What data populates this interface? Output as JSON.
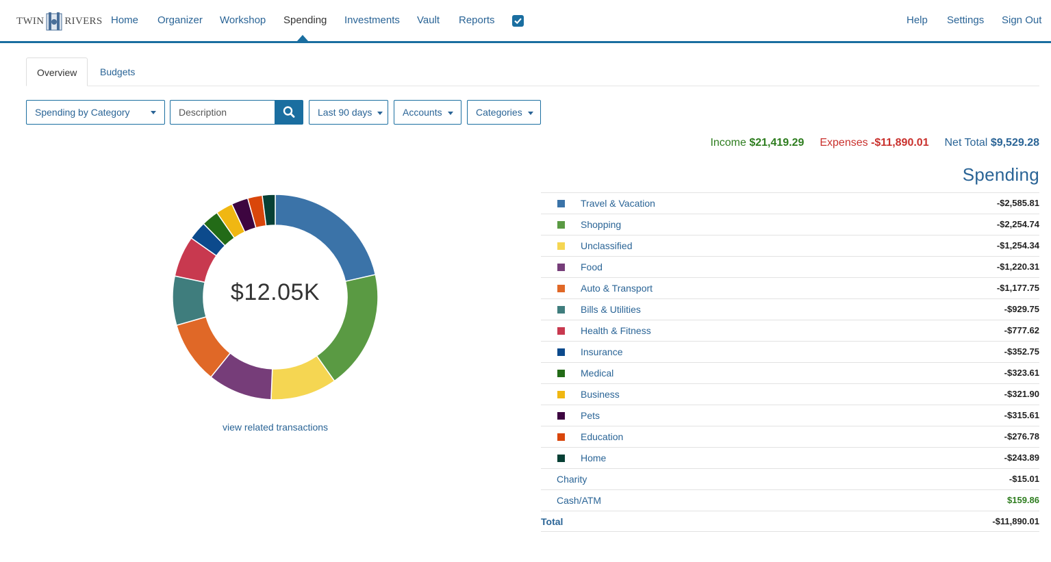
{
  "brand": {
    "left": "TWIN",
    "right": "RIVERS"
  },
  "nav": {
    "items": [
      "Home",
      "Organizer",
      "Workshop",
      "Spending",
      "Investments",
      "Vault",
      "Reports"
    ],
    "active": "Spending",
    "right_items": [
      "Help",
      "Settings",
      "Sign Out"
    ]
  },
  "tabs": {
    "overview": "Overview",
    "budgets": "Budgets"
  },
  "controls": {
    "view_select": "Spending by Category",
    "search_placeholder": "Description",
    "date_range": "Last 90 days",
    "accounts": "Accounts",
    "categories": "Categories"
  },
  "totals": {
    "income_label": "Income",
    "income_value": "$21,419.29",
    "expenses_label": "Expenses",
    "expenses_value": "-$11,890.01",
    "net_label": "Net Total",
    "net_value": "$9,529.28"
  },
  "donut": {
    "center_label": "$12.05K",
    "link": "view related transactions"
  },
  "spending": {
    "title": "Spending",
    "total_label": "Total",
    "total_value": "-$11,890.01"
  },
  "chart_data": {
    "type": "pie",
    "categories": [
      "Travel & Vacation",
      "Shopping",
      "Unclassified",
      "Food",
      "Auto & Transport",
      "Bills & Utilities",
      "Health & Fitness",
      "Insurance",
      "Medical",
      "Business",
      "Pets",
      "Education",
      "Home",
      "Charity",
      "Cash/ATM"
    ],
    "values": [
      -2585.81,
      -2254.74,
      -1254.34,
      -1220.31,
      -1177.75,
      -929.75,
      -777.62,
      -352.75,
      -323.61,
      -321.9,
      -315.61,
      -276.78,
      -243.89,
      -15.01,
      159.86
    ],
    "display_values": [
      "-$2,585.81",
      "-$2,254.74",
      "-$1,254.34",
      "-$1,220.31",
      "-$1,177.75",
      "-$929.75",
      "-$777.62",
      "-$352.75",
      "-$323.61",
      "-$321.90",
      "-$315.61",
      "-$276.78",
      "-$243.89",
      "-$15.01",
      "$159.86"
    ],
    "colors": [
      "#3b73a8",
      "#5a9a43",
      "#f5d652",
      "#763d79",
      "#e06827",
      "#3f7d7d",
      "#c8394f",
      "#0c4a8c",
      "#236b17",
      "#f0b712",
      "#3d0540",
      "#d9460b",
      "#074035",
      null,
      null
    ],
    "center_total": "$12.05K"
  }
}
